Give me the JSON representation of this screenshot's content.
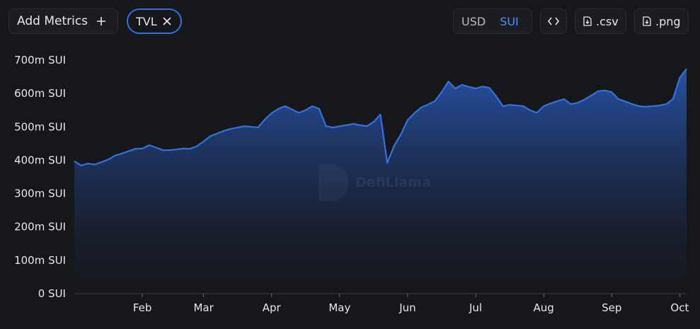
{
  "toolbar": {
    "add_metrics": "Add Metrics",
    "metric": "TVL",
    "currencies": [
      "USD",
      "SUI"
    ],
    "active_currency": "SUI",
    "downloads": [
      ".csv",
      ".png"
    ]
  },
  "watermark": "DefiLlama",
  "chart_data": {
    "type": "area",
    "categories": [
      null,
      null,
      null,
      null,
      null,
      null,
      null,
      null,
      null,
      null,
      "Feb",
      null,
      null,
      null,
      null,
      null,
      null,
      null,
      null,
      "Mar",
      null,
      null,
      null,
      null,
      null,
      null,
      null,
      null,
      null,
      "Apr",
      null,
      null,
      null,
      null,
      null,
      null,
      null,
      null,
      null,
      "May",
      null,
      null,
      null,
      null,
      null,
      null,
      null,
      null,
      null,
      "Jun",
      null,
      null,
      null,
      null,
      null,
      null,
      null,
      null,
      null,
      "Jul",
      null,
      null,
      null,
      null,
      null,
      null,
      null,
      null,
      null,
      "Aug",
      null,
      null,
      null,
      null,
      null,
      null,
      null,
      null,
      null,
      "Sep",
      null,
      null,
      null,
      null,
      null,
      null,
      null,
      null,
      null,
      "Oct",
      null
    ],
    "series": [
      {
        "name": "TVL",
        "color": "#2f72e4",
        "values": [
          395000000,
          382000000,
          388000000,
          385000000,
          392000000,
          400000000,
          412000000,
          418000000,
          425000000,
          432000000,
          433000000,
          443000000,
          436000000,
          428000000,
          428000000,
          430000000,
          433000000,
          432000000,
          440000000,
          454000000,
          470000000,
          478000000,
          486000000,
          492000000,
          496000000,
          500000000,
          498000000,
          496000000,
          520000000,
          539000000,
          552000000,
          560000000,
          550000000,
          540000000,
          548000000,
          560000000,
          552000000,
          500000000,
          496000000,
          500000000,
          503000000,
          507000000,
          503000000,
          500000000,
          513000000,
          535000000,
          390000000,
          440000000,
          475000000,
          518000000,
          539000000,
          556000000,
          565000000,
          575000000,
          602000000,
          634000000,
          613000000,
          624000000,
          618000000,
          613000000,
          619000000,
          615000000,
          590000000,
          560000000,
          564000000,
          562000000,
          560000000,
          548000000,
          540000000,
          560000000,
          568000000,
          575000000,
          581000000,
          566000000,
          570000000,
          580000000,
          592000000,
          605000000,
          607000000,
          602000000,
          581000000,
          574000000,
          566000000,
          560000000,
          558000000,
          560000000,
          562000000,
          566000000,
          581000000,
          645000000,
          672000000
        ]
      }
    ],
    "ylim": [
      0,
      700000000
    ],
    "yticks": [
      {
        "value": 0,
        "label": "0 SUI"
      },
      {
        "value": 100000000,
        "label": "100m SUI"
      },
      {
        "value": 200000000,
        "label": "200m SUI"
      },
      {
        "value": 300000000,
        "label": "300m SUI"
      },
      {
        "value": 400000000,
        "label": "400m SUI"
      },
      {
        "value": 500000000,
        "label": "500m SUI"
      },
      {
        "value": 600000000,
        "label": "600m SUI"
      },
      {
        "value": 700000000,
        "label": "700m SUI"
      }
    ],
    "grid": false
  }
}
